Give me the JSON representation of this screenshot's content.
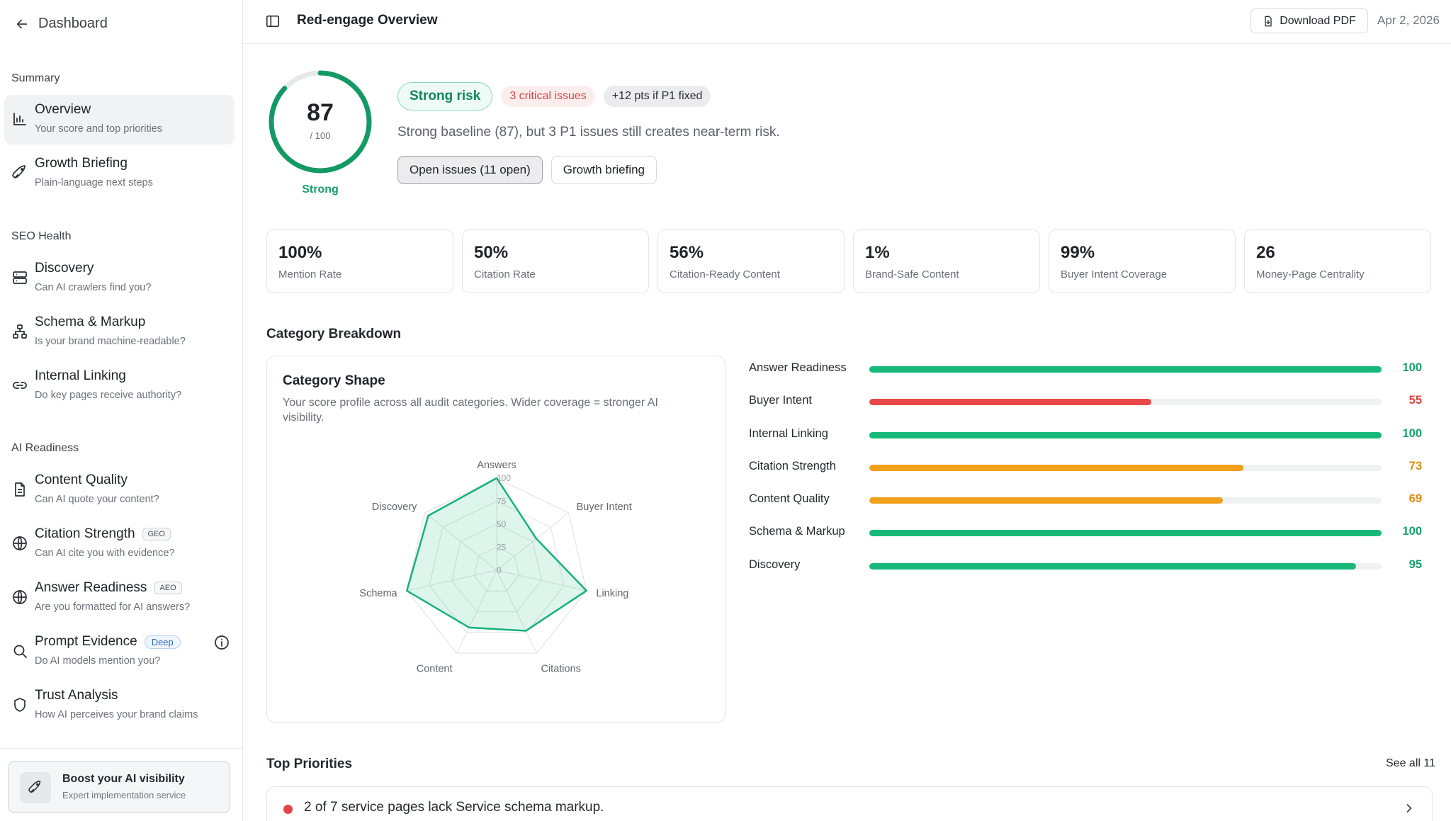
{
  "sidebar": {
    "back_label": "Dashboard",
    "sections": [
      {
        "label": "Summary"
      },
      {
        "label": "SEO Health"
      },
      {
        "label": "AI Readiness"
      }
    ],
    "items": [
      {
        "title": "Overview",
        "subtitle": "Your score and top priorities",
        "icon": "bar-chart-icon",
        "active": true
      },
      {
        "title": "Growth Briefing",
        "subtitle": "Plain-language next steps",
        "icon": "rocket-icon"
      },
      {
        "title": "Discovery",
        "subtitle": "Can AI crawlers find you?",
        "icon": "server-icon"
      },
      {
        "title": "Schema & Markup",
        "subtitle": "Is your brand machine-readable?",
        "icon": "hierarchy-icon"
      },
      {
        "title": "Internal Linking",
        "subtitle": "Do key pages receive authority?",
        "icon": "link-icon"
      },
      {
        "title": "Content Quality",
        "subtitle": "Can AI quote your content?",
        "icon": "document-icon"
      },
      {
        "title": "Citation Strength",
        "subtitle": "Can AI cite you with evidence?",
        "icon": "globe-icon",
        "tag": "GEO"
      },
      {
        "title": "Answer Readiness",
        "subtitle": "Are you formatted for AI answers?",
        "icon": "globe-icon",
        "tag": "AEO"
      },
      {
        "title": "Prompt Evidence",
        "subtitle": "Do AI models mention you?",
        "icon": "search-icon",
        "tag": "Deep"
      },
      {
        "title": "Trust Analysis",
        "subtitle": "How AI perceives your brand claims",
        "icon": "shield-icon"
      }
    ],
    "promo": {
      "title": "Boost your AI visibility",
      "subtitle": "Expert implementation service"
    }
  },
  "header": {
    "title": "Red-engage Overview",
    "download_label": "Download PDF",
    "date": "Apr 2, 2026"
  },
  "score": {
    "value": "87",
    "denominator": "/ 100",
    "fraction": 0.87,
    "label": "Strong",
    "badges": {
      "risk": "Strong risk",
      "critical": "3 critical issues",
      "gain": "+12 pts if P1 fixed"
    },
    "description": "Strong baseline (87), but 3 P1 issues still creates near-term risk.",
    "buttons": {
      "open_issues": "Open issues (11 open)",
      "growth": "Growth briefing"
    }
  },
  "metrics": [
    {
      "value": "100%",
      "label": "Mention Rate"
    },
    {
      "value": "50%",
      "label": "Citation Rate"
    },
    {
      "value": "56%",
      "label": "Citation-Ready Content"
    },
    {
      "value": "1%",
      "label": "Brand-Safe Content"
    },
    {
      "value": "99%",
      "label": "Buyer Intent Coverage"
    },
    {
      "value": "26",
      "label": "Money-Page Centrality"
    }
  ],
  "breakdown": {
    "heading": "Category Breakdown",
    "radar": {
      "title": "Category Shape",
      "subtitle": "Your score profile across all audit categories. Wider coverage = stronger AI visibility."
    }
  },
  "chart_data": {
    "type": "radar",
    "categories": [
      "Answers",
      "Buyer Intent",
      "Linking",
      "Citations",
      "Content",
      "Schema",
      "Discovery"
    ],
    "values": [
      100,
      55,
      100,
      73,
      69,
      100,
      95
    ],
    "ticks": [
      "0",
      "25",
      "50",
      "75",
      "100"
    ],
    "range": [
      0,
      100
    ]
  },
  "bars": [
    {
      "label": "Answer Readiness",
      "value": 100,
      "display": "100",
      "color": "#16b97a"
    },
    {
      "label": "Buyer Intent",
      "value": 55,
      "display": "55",
      "color": "#e84848"
    },
    {
      "label": "Internal Linking",
      "value": 100,
      "display": "100",
      "color": "#16b97a"
    },
    {
      "label": "Citation Strength",
      "value": 73,
      "display": "73",
      "color": "#f0a11c"
    },
    {
      "label": "Content Quality",
      "value": 69,
      "display": "69",
      "color": "#f0a11c"
    },
    {
      "label": "Schema & Markup",
      "value": 100,
      "display": "100",
      "color": "#16b97a"
    },
    {
      "label": "Discovery",
      "value": 95,
      "display": "95",
      "color": "#16b97a"
    }
  ],
  "value_colors": {
    "green": "#16a06c",
    "red": "#e04040",
    "orange": "#e08a10"
  },
  "priorities": {
    "heading": "Top Priorities",
    "see_all": "See all 11",
    "items": [
      {
        "text": "2 of 7 service pages lack Service schema markup.",
        "severity": "critical"
      }
    ]
  }
}
